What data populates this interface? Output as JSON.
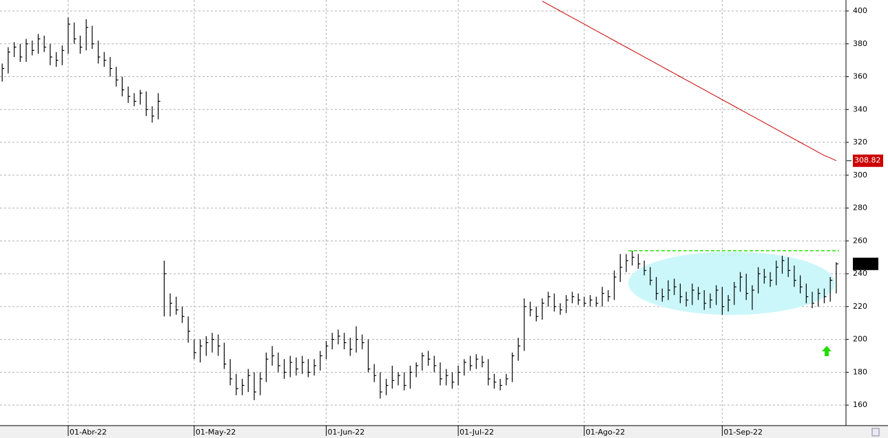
{
  "chart_data": {
    "type": "hlc",
    "categories": [
      null,
      null,
      null,
      null,
      null,
      null,
      null,
      null,
      null,
      null,
      null,
      "01-Abr-22",
      null,
      null,
      null,
      null,
      null,
      null,
      null,
      null,
      null,
      null,
      null,
      null,
      null,
      null,
      null,
      null,
      null,
      null,
      null,
      null,
      "01-May-22",
      null,
      null,
      null,
      null,
      null,
      null,
      null,
      null,
      null,
      null,
      null,
      null,
      null,
      null,
      null,
      null,
      null,
      null,
      null,
      null,
      null,
      "01-Jun-22",
      null,
      null,
      null,
      null,
      null,
      null,
      null,
      null,
      null,
      null,
      null,
      null,
      null,
      null,
      null,
      null,
      null,
      null,
      null,
      null,
      null,
      "01-Jul-22",
      null,
      null,
      null,
      null,
      null,
      null,
      null,
      null,
      null,
      null,
      null,
      null,
      null,
      null,
      null,
      null,
      null,
      null,
      null,
      null,
      "01-Ago-22",
      null,
      null,
      null,
      null,
      null,
      null,
      null,
      null,
      null,
      null,
      null,
      null,
      null,
      null,
      null,
      null,
      null,
      null,
      null,
      null,
      null,
      null,
      "01-Sep-22",
      null,
      null,
      null,
      null,
      null,
      null,
      null,
      null,
      null,
      null,
      null,
      null,
      null,
      null,
      null,
      null,
      null,
      null,
      null
    ],
    "series": [
      {
        "color": "#000000",
        "high": [
          368,
          378,
          381,
          380,
          383,
          382,
          386,
          385,
          380,
          375,
          379,
          396,
          393,
          385,
          395,
          391,
          382,
          375,
          372,
          366,
          360,
          354,
          350,
          352,
          351,
          342,
          350,
          248,
          228,
          226,
          220,
          214,
          200,
          200,
          202,
          204,
          203,
          198,
          188,
          179,
          176,
          182,
          180,
          180,
          192,
          196,
          192,
          188,
          190,
          189,
          190,
          188,
          188,
          193,
          199,
          204,
          206,
          204,
          201,
          208,
          203,
          200,
          185,
          180,
          176,
          184,
          180,
          180,
          184,
          186,
          192,
          193,
          190,
          186,
          182,
          180,
          184,
          188,
          190,
          191,
          190,
          188,
          179,
          176,
          179,
          192,
          201,
          225,
          223,
          220,
          225,
          229,
          228,
          222,
          227,
          229,
          228,
          226,
          227,
          226,
          232,
          230,
          242,
          252,
          252,
          254,
          252,
          248,
          244,
          238,
          231,
          236,
          237,
          234,
          229,
          234,
          232,
          230,
          228,
          233,
          232,
          227,
          235,
          241,
          240,
          233,
          244,
          243,
          241,
          248,
          251,
          250,
          245,
          239,
          234,
          229,
          231,
          231,
          238,
          247
        ],
        "low": [
          357,
          362,
          372,
          369,
          369,
          373,
          374,
          375,
          367,
          366,
          367,
          374,
          380,
          374,
          376,
          377,
          368,
          366,
          360,
          354,
          348,
          344,
          342,
          343,
          336,
          332,
          334,
          214,
          214,
          215,
          210,
          198,
          188,
          186,
          190,
          192,
          190,
          182,
          172,
          166,
          166,
          168,
          163,
          166,
          174,
          184,
          180,
          176,
          177,
          178,
          179,
          177,
          178,
          181,
          188,
          194,
          197,
          194,
          190,
          192,
          194,
          180,
          174,
          164,
          166,
          170,
          172,
          169,
          170,
          177,
          181,
          184,
          180,
          172,
          172,
          170,
          172,
          178,
          181,
          182,
          183,
          172,
          170,
          169,
          172,
          174,
          187,
          193,
          214,
          211,
          212,
          220,
          217,
          215,
          216,
          222,
          221,
          220,
          220,
          220,
          220,
          223,
          224,
          235,
          241,
          245,
          243,
          239,
          233,
          224,
          223,
          224,
          227,
          222,
          220,
          221,
          224,
          218,
          219,
          221,
          215,
          217,
          221,
          229,
          224,
          218,
          228,
          234,
          232,
          233,
          240,
          238,
          232,
          228,
          222,
          219,
          220,
          222,
          223,
          228
        ],
        "close": [
          365,
          375,
          378,
          372,
          380,
          376,
          383,
          378,
          372,
          370,
          376,
          392,
          383,
          378,
          390,
          380,
          372,
          370,
          365,
          358,
          352,
          348,
          345,
          350,
          340,
          336,
          345,
          240,
          222,
          218,
          214,
          205,
          192,
          196,
          198,
          200,
          196,
          185,
          176,
          170,
          172,
          178,
          168,
          176,
          188,
          190,
          184,
          180,
          186,
          182,
          186,
          180,
          184,
          190,
          196,
          200,
          202,
          198,
          194,
          200,
          198,
          182,
          178,
          168,
          172,
          175,
          178,
          172,
          180,
          184,
          190,
          188,
          184,
          176,
          178,
          174,
          180,
          186,
          184,
          188,
          186,
          176,
          174,
          172,
          176,
          190,
          196,
          220,
          218,
          214,
          222,
          226,
          220,
          218,
          224,
          226,
          224,
          222,
          224,
          222,
          228,
          226,
          238,
          244,
          248,
          250,
          246,
          242,
          236,
          228,
          226,
          230,
          232,
          226,
          224,
          230,
          228,
          222,
          224,
          230,
          220,
          224,
          232,
          238,
          228,
          230,
          240,
          238,
          236,
          244,
          248,
          242,
          236,
          232,
          226,
          222,
          228,
          226,
          236,
          246
        ]
      },
      {
        "color": "#cc0000",
        "values": [
          null,
          null,
          null,
          null,
          null,
          null,
          null,
          null,
          null,
          null,
          null,
          null,
          null,
          null,
          null,
          null,
          null,
          null,
          null,
          null,
          null,
          null,
          null,
          null,
          null,
          null,
          null,
          null,
          null,
          null,
          null,
          null,
          null,
          null,
          null,
          null,
          null,
          null,
          null,
          null,
          null,
          null,
          null,
          null,
          null,
          null,
          null,
          null,
          null,
          null,
          null,
          null,
          null,
          null,
          null,
          null,
          null,
          null,
          null,
          null,
          null,
          null,
          null,
          null,
          null,
          null,
          null,
          null,
          null,
          null,
          null,
          null,
          null,
          null,
          null,
          null,
          null,
          null,
          null,
          null,
          null,
          null,
          null,
          null,
          null,
          null,
          null,
          null,
          null,
          null,
          406,
          404,
          402,
          400,
          398,
          396,
          394,
          392,
          390,
          388,
          386,
          384,
          382,
          380,
          378,
          376,
          374,
          372,
          370,
          368,
          366,
          364,
          362,
          360,
          358,
          356,
          354,
          352,
          350,
          348,
          346,
          344,
          342,
          340,
          338,
          336,
          334,
          332,
          330,
          328,
          326,
          324,
          322,
          320,
          318,
          316,
          314,
          312,
          310.5,
          308.82
        ]
      }
    ],
    "hline": {
      "value": 254,
      "color": "#22dd00"
    },
    "ylim": [
      147.5,
      406.7
    ],
    "yticks": [
      160,
      180,
      200,
      220,
      240,
      260,
      280,
      300,
      320,
      340,
      360,
      380,
      400
    ],
    "grid": true
  }
}
